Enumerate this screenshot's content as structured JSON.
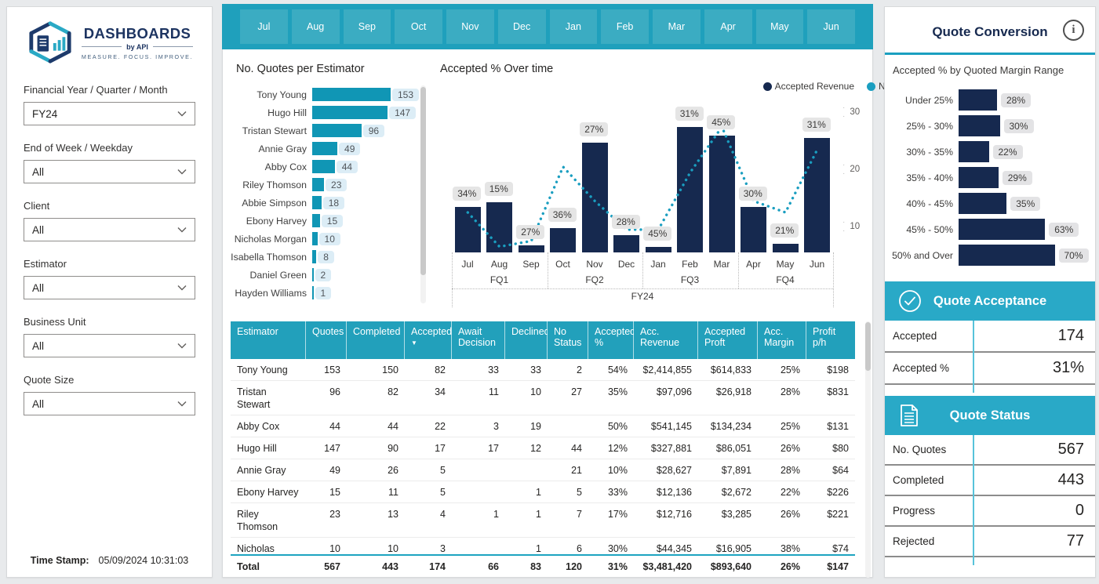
{
  "colors": {
    "teal_ribbon": "#1fa0bc",
    "teal_tab": "#3bacc2",
    "teal_section": "#29a9c7",
    "teal_accent": "#1a9fc0",
    "table_head": "#22a0bb",
    "est_bar": "#1096b5",
    "line_teal": "#1a9ec0",
    "navy": "#16294f"
  },
  "logo": {
    "title": "DASHBOARDS",
    "byline": "by API",
    "tagline": "MEASURE. FOCUS. IMPROVE."
  },
  "filters": [
    {
      "label": "Financial Year / Quarter / Month",
      "value": "FY24"
    },
    {
      "label": "End of Week / Weekday",
      "value": "All"
    },
    {
      "label": "Client",
      "value": "All"
    },
    {
      "label": "Estimator",
      "value": "All"
    },
    {
      "label": "Business Unit",
      "value": "All"
    },
    {
      "label": "Quote Size",
      "value": "All"
    }
  ],
  "timestamp": {
    "label": "Time Stamp:",
    "value": "05/09/2024 10:31:03"
  },
  "month_tabs": [
    "Jul",
    "Aug",
    "Sep",
    "Oct",
    "Nov",
    "Dec",
    "Jan",
    "Feb",
    "Mar",
    "Apr",
    "May",
    "Jun"
  ],
  "chart_data": [
    {
      "type": "bar",
      "orientation": "horizontal",
      "title": "No. Quotes per Estimator",
      "categories": [
        "Tony Young",
        "Hugo Hill",
        "Tristan Stewart",
        "Annie Gray",
        "Abby Cox",
        "Riley Thomson",
        "Abbie Simpson",
        "Ebony Harvey",
        "Nicholas Morgan",
        "Isabella Thomson",
        "Daniel Green",
        "Hayden Williams"
      ],
      "values": [
        153,
        147,
        96,
        49,
        44,
        23,
        18,
        15,
        10,
        8,
        2,
        1
      ],
      "xlim": [
        0,
        153
      ]
    },
    {
      "type": "combo",
      "title": "Accepted % Over time",
      "categories": [
        "Jul",
        "Aug",
        "Sep",
        "Oct",
        "Nov",
        "Dec",
        "Jan",
        "Feb",
        "Mar",
        "Apr",
        "May",
        "Jun"
      ],
      "quarter_groups": [
        {
          "label": "FQ1",
          "center_month_index": 1,
          "end_after_index": 2
        },
        {
          "label": "FQ2",
          "center_month_index": 4,
          "end_after_index": 5
        },
        {
          "label": "FQ3",
          "center_month_index": 7,
          "end_after_index": 8
        },
        {
          "label": "FQ4",
          "center_month_index": 10,
          "end_after_index": -1
        }
      ],
      "year_label": "FY24",
      "series": [
        {
          "name": "Accepted Revenue",
          "render": "bar",
          "color": "#16294f",
          "values_relative_height": [
            0.32,
            0.35,
            0.05,
            0.17,
            0.77,
            0.12,
            0.04,
            0.88,
            0.82,
            0.32,
            0.06,
            0.8
          ],
          "note": "bar magnitudes estimated from pixels; no revenue axis labels shown"
        },
        {
          "name": "No. Accepted Quotes",
          "render": "dotted-line",
          "color": "#1a9ec0",
          "values_estimated": [
            12,
            6,
            7,
            20,
            14,
            9,
            9,
            19,
            27,
            14,
            12,
            23
          ]
        }
      ],
      "accepted_pct_labels": [
        "34%",
        "15%",
        "27%",
        "36%",
        "27%",
        "28%",
        "45%",
        "31%",
        "45%",
        "30%",
        "21%",
        "31%"
      ],
      "y2_axis": {
        "ticks": [
          10,
          20,
          30
        ],
        "max": 30,
        "position": "right"
      },
      "legend_position": "top-center"
    },
    {
      "type": "bar",
      "orientation": "horizontal",
      "title": "Accepted % by Quoted Margin Range",
      "categories": [
        "Under 25%",
        "25% - 30%",
        "30% - 35%",
        "35% - 40%",
        "40% - 45%",
        "45% - 50%",
        "50% and Over"
      ],
      "values": [
        28,
        30,
        22,
        29,
        35,
        63,
        70
      ],
      "unit": "%",
      "xlim": [
        0,
        70
      ]
    }
  ],
  "table": {
    "columns": [
      {
        "label": "Estimator"
      },
      {
        "label": "Quotes"
      },
      {
        "label": "Completed"
      },
      {
        "label": "Accepted",
        "sorted": "desc"
      },
      {
        "label": "Await Decision"
      },
      {
        "label": "Declined"
      },
      {
        "label": "No Status"
      },
      {
        "label": "Accepted %"
      },
      {
        "label": "Acc. Revenue"
      },
      {
        "label": "Accepted Proft"
      },
      {
        "label": "Acc. Margin"
      },
      {
        "label": "Profit p/h"
      }
    ],
    "rows": [
      [
        "Tony Young",
        "153",
        "150",
        "82",
        "33",
        "33",
        "2",
        "54%",
        "$2,414,855",
        "$614,833",
        "25%",
        "$198"
      ],
      [
        "Tristan Stewart",
        "96",
        "82",
        "34",
        "11",
        "10",
        "27",
        "35%",
        "$97,096",
        "$26,918",
        "28%",
        "$831"
      ],
      [
        "Abby Cox",
        "44",
        "44",
        "22",
        "3",
        "19",
        "",
        "50%",
        "$541,145",
        "$134,234",
        "25%",
        "$131"
      ],
      [
        "Hugo Hill",
        "147",
        "90",
        "17",
        "17",
        "12",
        "44",
        "12%",
        "$327,881",
        "$86,051",
        "26%",
        "$80"
      ],
      [
        "Annie Gray",
        "49",
        "26",
        "5",
        "",
        "",
        "21",
        "10%",
        "$28,627",
        "$7,891",
        "28%",
        "$64"
      ],
      [
        "Ebony Harvey",
        "15",
        "11",
        "5",
        "",
        "1",
        "5",
        "33%",
        "$12,136",
        "$2,672",
        "22%",
        "$226"
      ],
      [
        "Riley Thomson",
        "23",
        "13",
        "4",
        "1",
        "1",
        "7",
        "17%",
        "$12,716",
        "$3,285",
        "26%",
        "$221"
      ],
      [
        "Nicholas Morgan",
        "10",
        "10",
        "3",
        "",
        "1",
        "6",
        "30%",
        "$44,345",
        "$16,905",
        "38%",
        "$74"
      ]
    ],
    "total": [
      "Total",
      "567",
      "443",
      "174",
      "66",
      "83",
      "120",
      "31%",
      "$3,481,420",
      "$893,640",
      "26%",
      "$147"
    ]
  },
  "right_panel": {
    "title": "Quote Conversion",
    "subtitle": "Accepted % by Quoted Margin Range",
    "acceptance": {
      "title": "Quote Acceptance",
      "rows": [
        {
          "label": "Accepted",
          "value": "174"
        },
        {
          "label": "Accepted %",
          "value": "31%"
        }
      ]
    },
    "status": {
      "title": "Quote Status",
      "rows": [
        {
          "label": "No. Quotes",
          "value": "567"
        },
        {
          "label": "Completed",
          "value": "443"
        },
        {
          "label": "Progress",
          "value": "0"
        },
        {
          "label": "Rejected",
          "value": "77"
        }
      ]
    }
  }
}
